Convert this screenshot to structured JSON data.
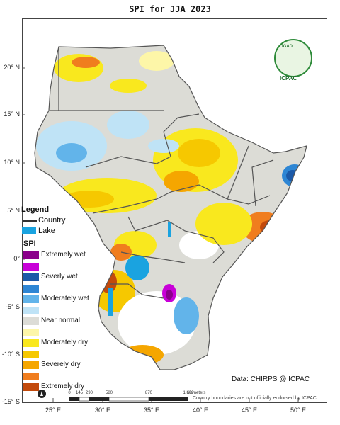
{
  "title": "SPI   for  JJA  2023",
  "lat_labels": [
    "20° N",
    "15° N",
    "10° N",
    "5° N",
    "0°",
    "-5° S",
    "-10° S",
    "-15° S"
  ],
  "lon_labels": [
    "25° E",
    "30° E",
    "35° E",
    "40° E",
    "45° E",
    "50° E"
  ],
  "legend": {
    "title": "Legend",
    "country": "Country",
    "lake": "Lake",
    "lake_color": "#1aa3e0",
    "spi_title": "SPI",
    "classes": [
      {
        "label": "Extremely wet",
        "color": "#8b008b"
      },
      {
        "label": "",
        "color": "#c800d8"
      },
      {
        "label": "Severly wet",
        "color": "#1c5aa8"
      },
      {
        "label": "",
        "color": "#2e86d4"
      },
      {
        "label": "Moderately wet",
        "color": "#62b4ea"
      },
      {
        "label": "",
        "color": "#bfe3f6"
      },
      {
        "label": "Near normal",
        "color": "#dcdcd6"
      },
      {
        "label": "",
        "color": "#fdf6a8"
      },
      {
        "label": "Moderately dry",
        "color": "#f9e81e"
      },
      {
        "label": "",
        "color": "#f6c800"
      },
      {
        "label": "Severely dry",
        "color": "#f5a600"
      },
      {
        "label": "",
        "color": "#f07d1e"
      },
      {
        "label": "Extremely dry",
        "color": "#c24a0c"
      }
    ]
  },
  "scalebar": {
    "ticks": [
      "0",
      "145",
      "290",
      "580",
      "870",
      "1,160"
    ],
    "unit": "Kilometers"
  },
  "logo": {
    "top": "IGAD",
    "bottom": "ICPAC"
  },
  "credit": "Data: CHIRPS @ ICPAC",
  "disclaimer": "Country boundaries are not officially endorsed by ICPAC"
}
